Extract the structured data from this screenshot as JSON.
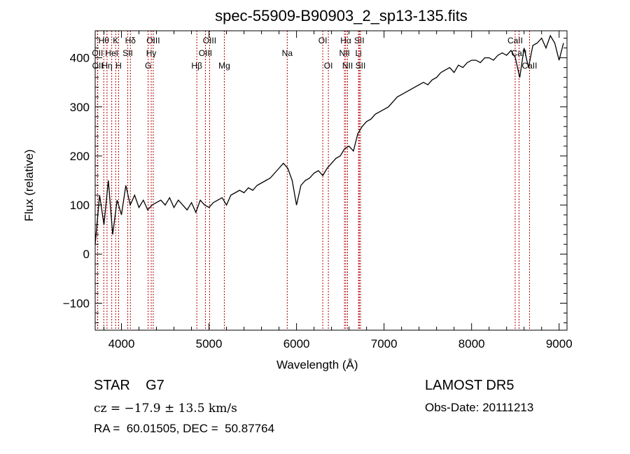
{
  "chart_data": {
    "type": "line",
    "title": "spec-55909-B90903_2_sp13-135.fits",
    "xlabel": "Wavelength (Å)",
    "ylabel": "Flux (relative)",
    "xlim": [
      3700,
      9090
    ],
    "ylim": [
      -155,
      455
    ],
    "xticks": [
      4000,
      5000,
      6000,
      7000,
      8000,
      9000
    ],
    "yticks": [
      -100,
      0,
      100,
      200,
      300,
      400
    ],
    "grid": false,
    "series": [
      {
        "name": "flux",
        "color": "#000000",
        "x": [
          3700,
          3750,
          3800,
          3850,
          3900,
          3950,
          4000,
          4050,
          4100,
          4150,
          4200,
          4250,
          4300,
          4350,
          4400,
          4450,
          4500,
          4550,
          4600,
          4650,
          4700,
          4750,
          4800,
          4850,
          4900,
          4950,
          5000,
          5050,
          5100,
          5150,
          5200,
          5250,
          5300,
          5350,
          5400,
          5450,
          5500,
          5550,
          5600,
          5650,
          5700,
          5750,
          5800,
          5850,
          5900,
          5950,
          6000,
          6050,
          6100,
          6150,
          6200,
          6250,
          6300,
          6350,
          6400,
          6450,
          6500,
          6550,
          6600,
          6650,
          6700,
          6750,
          6800,
          6850,
          6900,
          6950,
          7000,
          7050,
          7100,
          7150,
          7200,
          7250,
          7300,
          7350,
          7400,
          7450,
          7500,
          7550,
          7600,
          7650,
          7700,
          7750,
          7800,
          7850,
          7900,
          7950,
          8000,
          8050,
          8100,
          8150,
          8200,
          8250,
          8300,
          8350,
          8400,
          8450,
          8500,
          8550,
          8600,
          8650,
          8700,
          8750,
          8800,
          8850,
          8900,
          8950,
          9000,
          9050
        ],
        "y": [
          20,
          120,
          60,
          150,
          40,
          110,
          80,
          140,
          100,
          120,
          95,
          110,
          90,
          100,
          105,
          110,
          100,
          115,
          95,
          110,
          100,
          90,
          105,
          85,
          110,
          100,
          95,
          105,
          110,
          115,
          100,
          120,
          125,
          130,
          125,
          135,
          130,
          140,
          145,
          150,
          155,
          165,
          175,
          185,
          175,
          150,
          100,
          140,
          150,
          155,
          165,
          170,
          160,
          175,
          185,
          195,
          200,
          215,
          220,
          210,
          245,
          260,
          270,
          275,
          285,
          290,
          295,
          300,
          310,
          320,
          325,
          330,
          335,
          340,
          345,
          350,
          345,
          355,
          360,
          370,
          375,
          380,
          370,
          385,
          380,
          390,
          395,
          395,
          390,
          400,
          400,
          395,
          405,
          410,
          405,
          415,
          400,
          360,
          420,
          380,
          425,
          430,
          440,
          420,
          445,
          430,
          395,
          430
        ]
      }
    ],
    "spectral_lines": [
      {
        "label": "Hθ",
        "wave": 3798,
        "row": 0
      },
      {
        "label": "K",
        "wave": 3934,
        "row": 0
      },
      {
        "label": "Hδ",
        "wave": 4102,
        "row": 0
      },
      {
        "label": "OIII",
        "wave": 4363,
        "row": 0
      },
      {
        "label": "OIII",
        "wave": 5007,
        "row": 0
      },
      {
        "label": "OI",
        "wave": 6300,
        "row": 0
      },
      {
        "label": "Hα",
        "wave": 6563,
        "row": 0
      },
      {
        "label": "SII",
        "wave": 6717,
        "row": 0
      },
      {
        "label": "CaII",
        "wave": 8498,
        "row": 0
      },
      {
        "label": "OII",
        "wave": 3727,
        "row": 1
      },
      {
        "label": "HeI",
        "wave": 3889,
        "row": 1
      },
      {
        "label": "SII",
        "wave": 4072,
        "row": 1
      },
      {
        "label": "Hγ",
        "wave": 4340,
        "row": 1
      },
      {
        "label": "OIII",
        "wave": 4959,
        "row": 1
      },
      {
        "label": "Na",
        "wave": 5894,
        "row": 1
      },
      {
        "label": "NII",
        "wave": 6548,
        "row": 1
      },
      {
        "label": "Li",
        "wave": 6708,
        "row": 1
      },
      {
        "label": "CaII",
        "wave": 8542,
        "row": 1
      },
      {
        "label": "OII",
        "wave": 3729,
        "row": 2
      },
      {
        "label": "Hη",
        "wave": 3835,
        "row": 2
      },
      {
        "label": "H",
        "wave": 3968,
        "row": 2
      },
      {
        "label": "G",
        "wave": 4305,
        "row": 2
      },
      {
        "label": "Hβ",
        "wave": 4861,
        "row": 2
      },
      {
        "label": "Mg",
        "wave": 5175,
        "row": 2
      },
      {
        "label": "OI",
        "wave": 6364,
        "row": 2
      },
      {
        "label": "NII",
        "wave": 6583,
        "row": 2
      },
      {
        "label": "SII",
        "wave": 6731,
        "row": 2
      },
      {
        "label": "CaII",
        "wave": 8662,
        "row": 2
      }
    ],
    "line_color": "#b00000"
  },
  "info": {
    "class": "STAR    G7",
    "cz": "cz = −17.9 ± 13.5 km/s",
    "coords": "RA =  60.01505, DEC =  50.87764",
    "survey": "LAMOST DR5",
    "obs_date": "Obs-Date: 20111213"
  }
}
